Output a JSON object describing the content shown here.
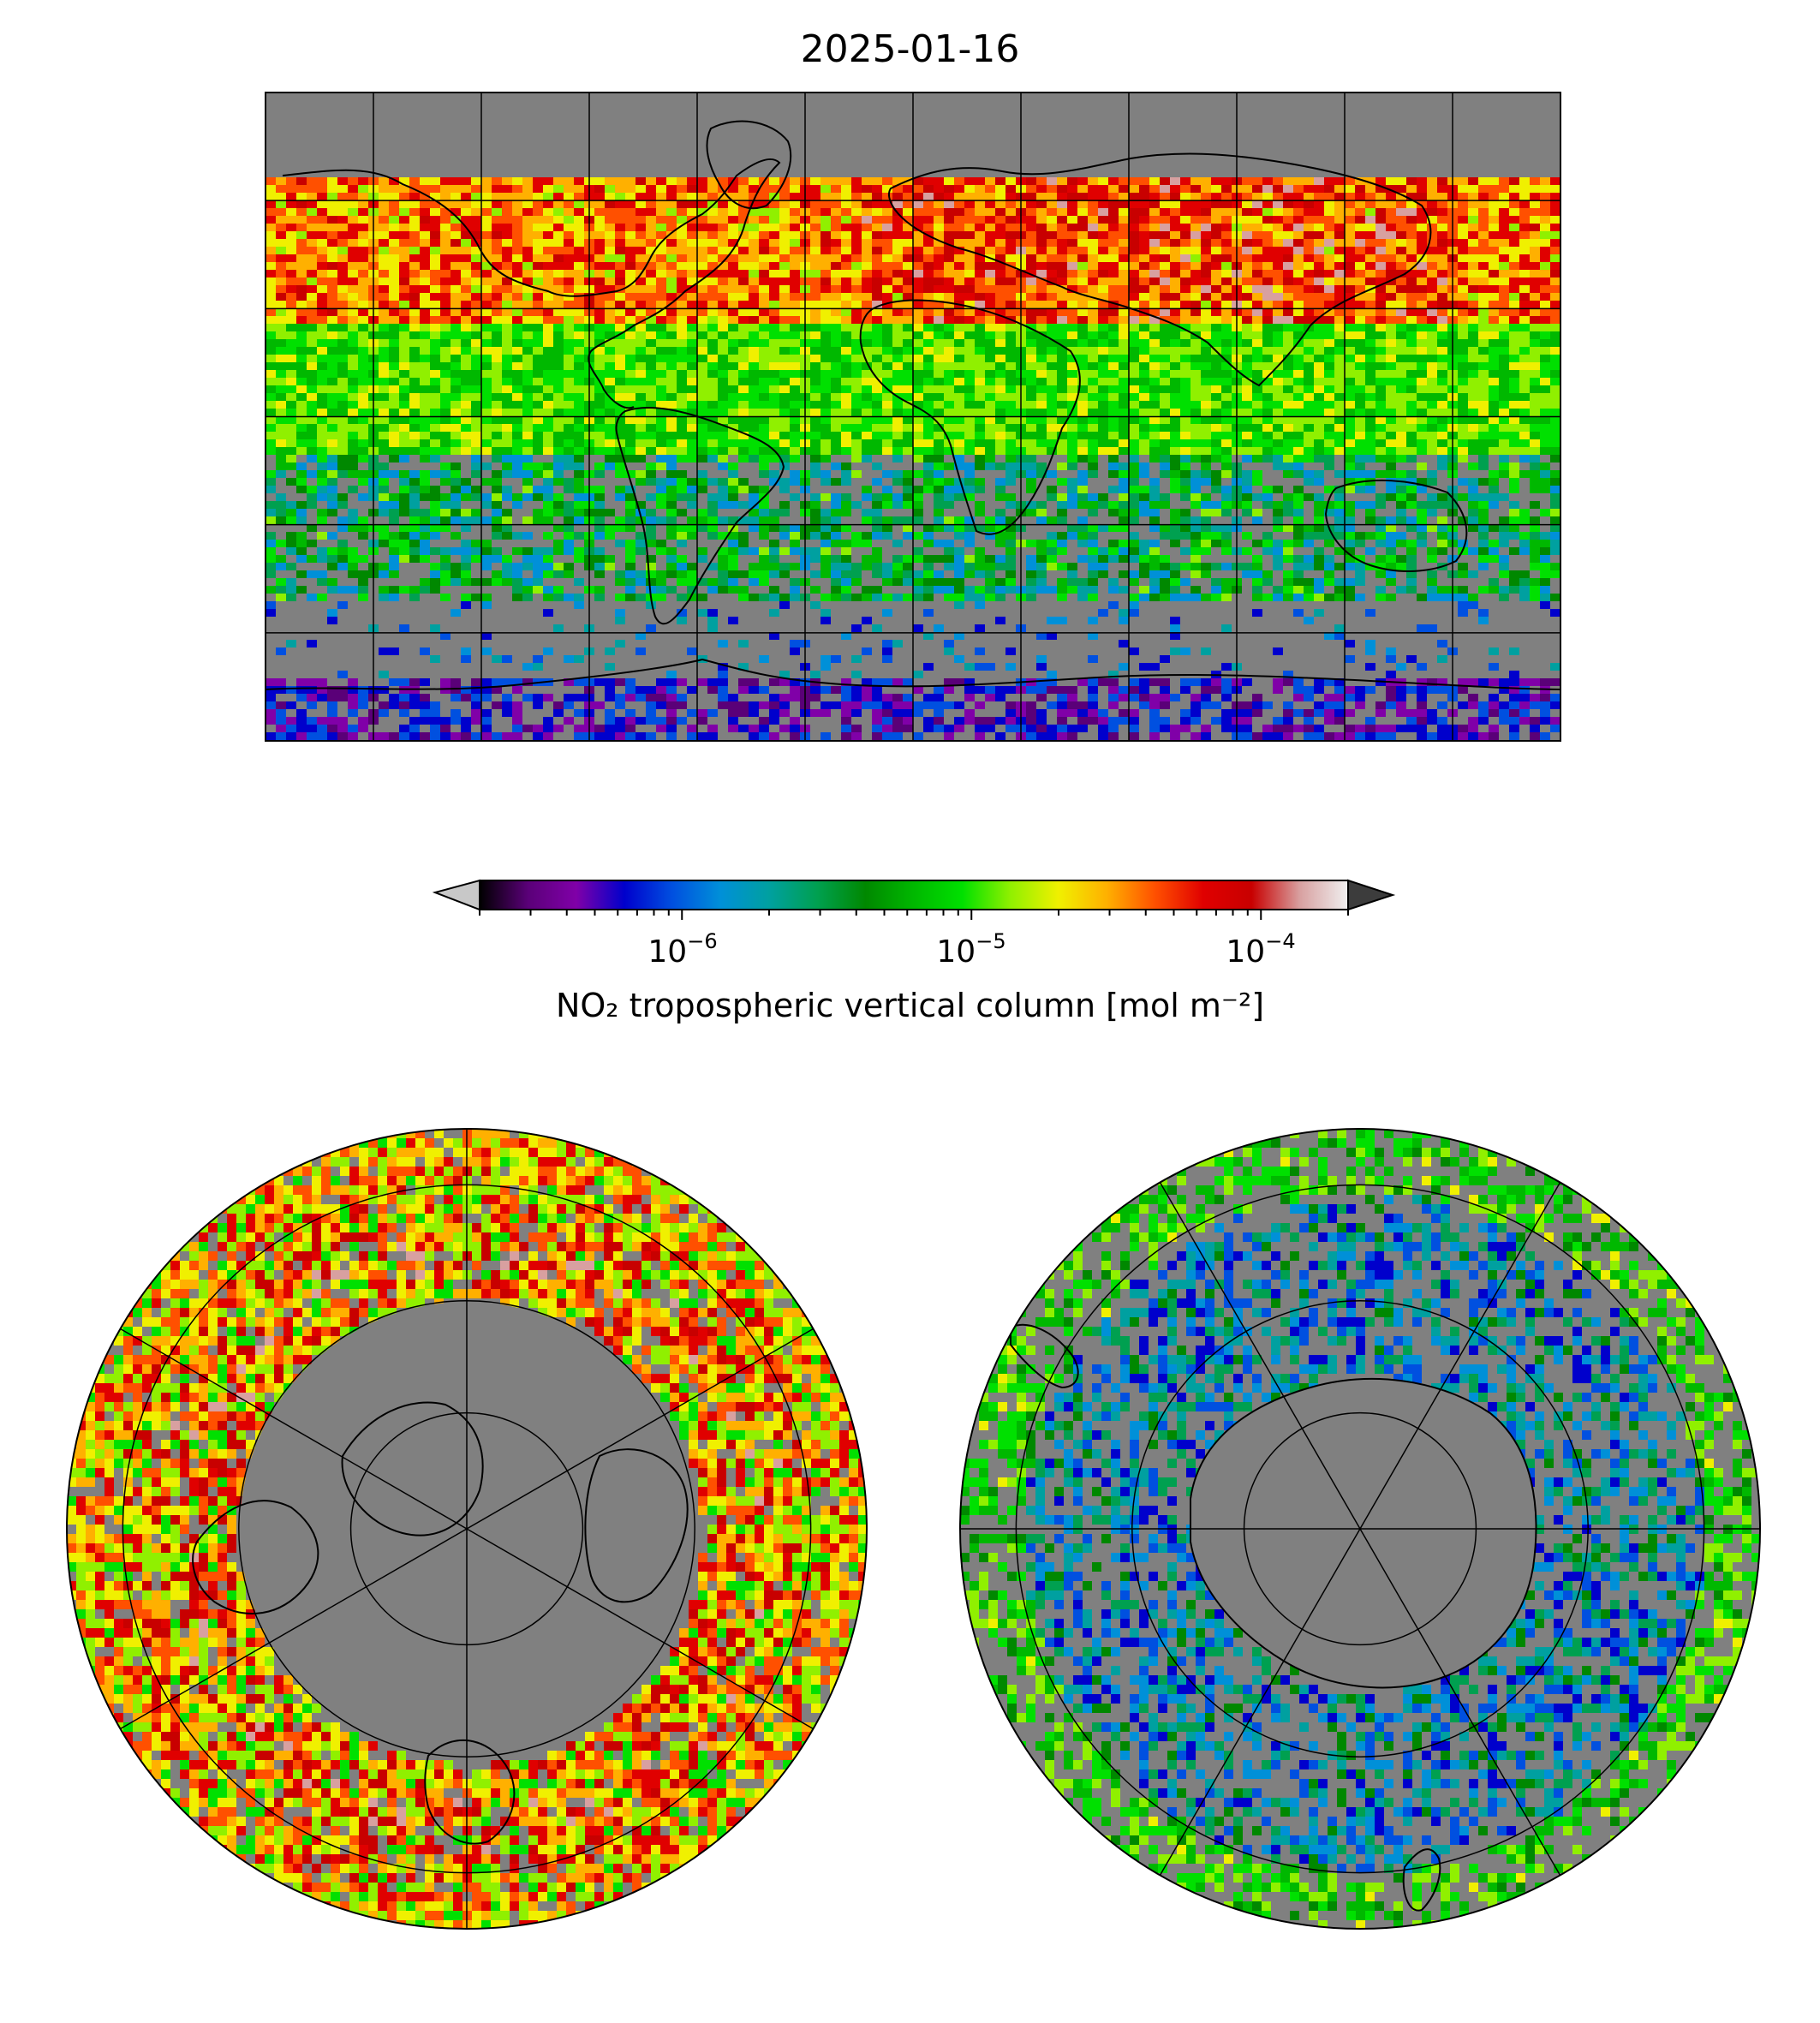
{
  "title": "2025-01-16",
  "colorbar": {
    "label": "NO₂ tropospheric vertical column [mol m⁻²]",
    "scale": "log",
    "vmin": 2e-07,
    "vmax": 0.0002,
    "extend": "both",
    "under_color": "#c8c8c8",
    "over_color": "#3c3c3c",
    "ticks": [
      {
        "value": 1e-06,
        "base": "10",
        "exp": "−6"
      },
      {
        "value": 1e-05,
        "base": "10",
        "exp": "−5"
      },
      {
        "value": 0.0001,
        "base": "10",
        "exp": "−4"
      }
    ],
    "colors": [
      "#000000",
      "#5a0078",
      "#8000a8",
      "#0000cc",
      "#0050e0",
      "#0090d8",
      "#00a0a0",
      "#00a050",
      "#008800",
      "#00b800",
      "#00e000",
      "#90f000",
      "#f0f000",
      "#ffb000",
      "#ff5000",
      "#e00000",
      "#c80000",
      "#d8a0a0",
      "#f0f0f0"
    ]
  },
  "maps": [
    {
      "name": "global",
      "projection": "plate-carree",
      "grid": true
    },
    {
      "name": "north-pole",
      "projection": "north-polar-stereographic",
      "grid": true
    },
    {
      "name": "south-pole",
      "projection": "south-polar-stereographic",
      "grid": true
    }
  ],
  "colors": {
    "no_data": "#808080",
    "background": "#ffffff",
    "frame": "#000000"
  }
}
